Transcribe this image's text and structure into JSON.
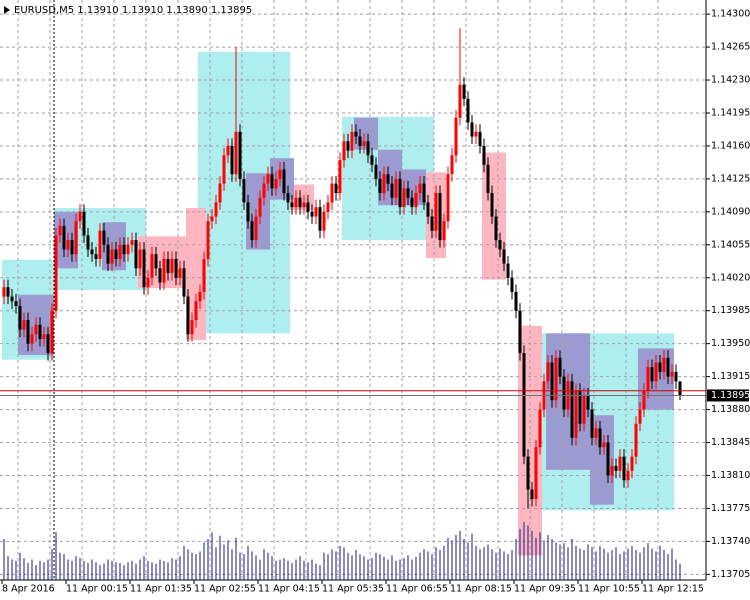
{
  "chart_data": {
    "type": "candlestick",
    "title": "EURUSD,M5  1.13910 1.13910 1.13890 1.13895",
    "categories": [
      "8 Apr 2016",
      null,
      null,
      null,
      null,
      null,
      null,
      null,
      null,
      null,
      null,
      null,
      null,
      null,
      null,
      null,
      "11 Apr 00:15",
      null,
      null,
      null,
      null,
      null,
      null,
      null,
      null,
      null,
      null,
      null,
      null,
      null,
      null,
      null,
      "11 Apr 01:35",
      null,
      null,
      null,
      null,
      null,
      null,
      null,
      null,
      null,
      null,
      null,
      null,
      null,
      null,
      null,
      "11 Apr 02:55",
      null,
      null,
      null,
      null,
      null,
      null,
      null,
      null,
      null,
      null,
      null,
      null,
      null,
      null,
      null,
      "11 Apr 04:15",
      null,
      null,
      null,
      null,
      null,
      null,
      null,
      null,
      null,
      null,
      null,
      null,
      null,
      null,
      null,
      "11 Apr 05:35",
      null,
      null,
      null,
      null,
      null,
      null,
      null,
      null,
      null,
      null,
      null,
      null,
      null,
      null,
      null,
      "11 Apr 06:55",
      null,
      null,
      null,
      null,
      null,
      null,
      null,
      null,
      null,
      null,
      null,
      null,
      null,
      null,
      null,
      "11 Apr 08:15",
      null,
      null,
      null,
      null,
      null,
      null,
      null,
      null,
      null,
      null,
      null,
      null,
      null,
      null,
      null,
      "11 Apr 09:35",
      null,
      null,
      null,
      null,
      null,
      null,
      null,
      null,
      null,
      null,
      null,
      null,
      null,
      null,
      null,
      "11 Apr 10:55",
      null,
      null,
      null,
      null,
      null,
      null,
      null,
      null,
      null,
      null,
      null,
      null,
      null,
      null,
      null,
      "11 Apr 12:15",
      null,
      null,
      null,
      null,
      null,
      null,
      null,
      null,
      null
    ],
    "open": [
      1.14,
      1.1401,
      1.14,
      1.13995,
      1.1399,
      1.13965,
      1.13975,
      1.1395,
      1.1396,
      1.1397,
      1.13955,
      1.1396,
      1.1394,
      1.13985,
      1.14065,
      1.14075,
      1.1405,
      1.1406,
      1.14045,
      1.1408,
      1.1409,
      1.14065,
      1.1405,
      1.14045,
      1.1404,
      1.1407,
      1.14055,
      1.14035,
      1.1405,
      1.1404,
      1.14055,
      1.14045,
      1.14055,
      1.1406,
      1.1403,
      1.1405,
      1.1401,
      1.1402,
      1.14045,
      1.1403,
      1.14015,
      1.1404,
      1.14025,
      1.1404,
      1.1402,
      1.1403,
      1.14,
      1.1396,
      1.13975,
      1.13995,
      1.14005,
      1.1404,
      1.1408,
      1.14085,
      1.141,
      1.1412,
      1.1415,
      1.1416,
      1.1413,
      1.14175,
      1.14125,
      1.141,
      1.1408,
      1.1406,
      1.14085,
      1.14105,
      1.1412,
      1.1413,
      1.14115,
      1.14125,
      1.14135,
      1.1411,
      1.141,
      1.14095,
      1.14105,
      1.14095,
      1.141,
      1.1409,
      1.14085,
      1.14095,
      1.1407,
      1.1409,
      1.141,
      1.1412,
      1.1411,
      1.14145,
      1.14165,
      1.14155,
      1.14175,
      1.1417,
      1.1416,
      1.14165,
      1.1415,
      1.1414,
      1.14125,
      1.1411,
      1.1413,
      1.1412,
      1.14105,
      1.14125,
      1.14095,
      1.14115,
      1.14105,
      1.14095,
      1.1411,
      1.1412,
      1.141,
      1.14085,
      1.1407,
      1.1411,
      1.1406,
      1.1408,
      1.1413,
      1.1415,
      1.1419,
      1.14225,
      1.1421,
      1.14185,
      1.1417,
      1.14175,
      1.1416,
      1.1414,
      1.1411,
      1.14085,
      1.1406,
      1.1405,
      1.14035,
      1.1402,
      1.14005,
      1.13985,
      1.1394,
      1.1383,
      1.13795,
      1.13785,
      1.1384,
      1.1388,
      1.1391,
      1.1393,
      1.1389,
      1.13935,
      1.13915,
      1.1388,
      1.1391,
      1.1385,
      1.139,
      1.13865,
      1.13895,
      1.1388,
      1.1385,
      1.1386,
      1.1384,
      1.13845,
      1.1381,
      1.1382,
      1.13815,
      1.1383,
      1.13805,
      1.13815,
      1.1383,
      1.13865,
      1.1388,
      1.139,
      1.13925,
      1.1391,
      1.1393,
      1.1392,
      1.13935,
      1.13915,
      1.1392,
      1.1391
    ],
    "high": [
      1.14018,
      1.14018,
      1.14008,
      1.14003,
      1.13998,
      1.13983,
      1.13983,
      1.13968,
      1.13978,
      1.13978,
      1.13968,
      1.13968,
      1.13993,
      1.14073,
      1.14083,
      1.14083,
      1.14068,
      1.14068,
      1.14088,
      1.14098,
      1.14098,
      1.14073,
      1.14058,
      1.14053,
      1.14078,
      1.14078,
      1.14063,
      1.14058,
      1.14058,
      1.14063,
      1.14063,
      1.14063,
      1.14068,
      1.14068,
      1.14058,
      1.14058,
      1.14028,
      1.14053,
      1.14053,
      1.14038,
      1.14048,
      1.14048,
      1.14048,
      1.14048,
      1.14038,
      1.14038,
      1.14008,
      1.13983,
      1.14003,
      1.14013,
      1.14048,
      1.14088,
      1.14093,
      1.14108,
      1.14128,
      1.14158,
      1.14168,
      1.14168,
      1.14265,
      1.14183,
      1.14133,
      1.14108,
      1.14088,
      1.14093,
      1.14113,
      1.14128,
      1.14138,
      1.14138,
      1.14133,
      1.14143,
      1.14143,
      1.14118,
      1.14108,
      1.14113,
      1.14113,
      1.14108,
      1.14108,
      1.14098,
      1.14103,
      1.14103,
      1.14098,
      1.14108,
      1.14128,
      1.14128,
      1.14153,
      1.14173,
      1.14173,
      1.14183,
      1.14183,
      1.14178,
      1.14173,
      1.14173,
      1.14158,
      1.14148,
      1.14133,
      1.14138,
      1.14138,
      1.14128,
      1.14133,
      1.14133,
      1.14123,
      1.14123,
      1.14113,
      1.14118,
      1.14128,
      1.14128,
      1.14108,
      1.14093,
      1.14118,
      1.14118,
      1.14088,
      1.14138,
      1.14158,
      1.14198,
      1.14285,
      1.14233,
      1.14218,
      1.14193,
      1.14183,
      1.14183,
      1.14168,
      1.14148,
      1.14118,
      1.14093,
      1.14068,
      1.14058,
      1.14043,
      1.14028,
      1.14013,
      1.13993,
      1.13948,
      1.13838,
      1.13803,
      1.13848,
      1.13888,
      1.13918,
      1.13938,
      1.13938,
      1.13943,
      1.13943,
      1.13923,
      1.13918,
      1.13918,
      1.13908,
      1.13908,
      1.13903,
      1.13903,
      1.13888,
      1.13868,
      1.13868,
      1.13853,
      1.13853,
      1.13828,
      1.13828,
      1.13838,
      1.13838,
      1.13823,
      1.13838,
      1.13873,
      1.13888,
      1.13908,
      1.13933,
      1.13933,
      1.13938,
      1.13938,
      1.13943,
      1.13943,
      1.13928,
      1.13928,
      1.1391
    ],
    "low": [
      1.13992,
      1.13992,
      1.13987,
      1.13982,
      1.13957,
      1.13957,
      1.13942,
      1.13942,
      1.13952,
      1.13947,
      1.13947,
      1.13932,
      1.13932,
      1.13977,
      1.14057,
      1.14042,
      1.14042,
      1.14037,
      1.14037,
      1.14072,
      1.14057,
      1.14042,
      1.14037,
      1.14032,
      1.14032,
      1.14047,
      1.14027,
      1.14027,
      1.14032,
      1.14032,
      1.14037,
      1.14037,
      1.14047,
      1.14022,
      1.14022,
      1.14002,
      1.14002,
      1.14012,
      1.14022,
      1.14007,
      1.14007,
      1.14017,
      1.14017,
      1.14012,
      1.14012,
      1.13992,
      1.13952,
      1.13952,
      1.13967,
      1.13987,
      1.13997,
      1.14032,
      1.14072,
      1.14077,
      1.14092,
      1.14112,
      1.14142,
      1.14122,
      1.14122,
      1.14117,
      1.14092,
      1.14072,
      1.14052,
      1.14052,
      1.14077,
      1.14097,
      1.14112,
      1.14107,
      1.14107,
      1.14117,
      1.14102,
      1.14092,
      1.14087,
      1.14087,
      1.14087,
      1.14087,
      1.14082,
      1.14077,
      1.14077,
      1.14062,
      1.14062,
      1.14082,
      1.14092,
      1.14102,
      1.14102,
      1.14137,
      1.14147,
      1.14147,
      1.14162,
      1.14152,
      1.14152,
      1.14142,
      1.14132,
      1.14117,
      1.14102,
      1.14102,
      1.14112,
      1.14097,
      1.14097,
      1.14087,
      1.14087,
      1.14097,
      1.14087,
      1.14087,
      1.14102,
      1.14092,
      1.14077,
      1.14062,
      1.14062,
      1.14052,
      1.14052,
      1.14072,
      1.14122,
      1.14142,
      1.14182,
      1.14202,
      1.14177,
      1.14162,
      1.14162,
      1.14152,
      1.14132,
      1.14102,
      1.14077,
      1.14052,
      1.14042,
      1.14027,
      1.14012,
      1.13997,
      1.13977,
      1.13932,
      1.13822,
      1.13775,
      1.13777,
      1.13777,
      1.13832,
      1.13872,
      1.13902,
      1.13882,
      1.13882,
      1.13907,
      1.13872,
      1.13872,
      1.13842,
      1.13842,
      1.13857,
      1.13857,
      1.13872,
      1.13842,
      1.13842,
      1.13832,
      1.13832,
      1.13802,
      1.13802,
      1.13807,
      1.13807,
      1.13797,
      1.13797,
      1.13807,
      1.13822,
      1.13857,
      1.13872,
      1.13892,
      1.13902,
      1.13902,
      1.13912,
      1.13912,
      1.13907,
      1.13907,
      1.13902,
      1.1389
    ],
    "close": [
      1.1401,
      1.14,
      1.13995,
      1.1399,
      1.13965,
      1.13975,
      1.1395,
      1.1396,
      1.1397,
      1.13955,
      1.1396,
      1.1394,
      1.13985,
      1.14065,
      1.14075,
      1.1405,
      1.1406,
      1.14045,
      1.1408,
      1.1409,
      1.14065,
      1.1405,
      1.14045,
      1.1404,
      1.1407,
      1.14055,
      1.14035,
      1.1405,
      1.1404,
      1.14055,
      1.14045,
      1.14055,
      1.1406,
      1.1403,
      1.1405,
      1.1401,
      1.1402,
      1.14045,
      1.1403,
      1.14015,
      1.1404,
      1.14025,
      1.1404,
      1.1402,
      1.1403,
      1.14,
      1.1396,
      1.13975,
      1.13995,
      1.14005,
      1.1404,
      1.1408,
      1.14085,
      1.141,
      1.1412,
      1.1415,
      1.1416,
      1.1413,
      1.14175,
      1.14125,
      1.141,
      1.1408,
      1.1406,
      1.14085,
      1.14105,
      1.1412,
      1.1413,
      1.14115,
      1.14125,
      1.14135,
      1.1411,
      1.141,
      1.14095,
      1.14105,
      1.14095,
      1.141,
      1.1409,
      1.14085,
      1.14095,
      1.1407,
      1.1409,
      1.141,
      1.1412,
      1.1411,
      1.14145,
      1.14165,
      1.14155,
      1.14175,
      1.1417,
      1.1416,
      1.14165,
      1.1415,
      1.1414,
      1.14125,
      1.1411,
      1.1413,
      1.1412,
      1.14105,
      1.14125,
      1.14095,
      1.14115,
      1.14105,
      1.14095,
      1.1411,
      1.1412,
      1.141,
      1.14085,
      1.1407,
      1.1411,
      1.1406,
      1.1408,
      1.1413,
      1.1415,
      1.1419,
      1.14225,
      1.1421,
      1.14185,
      1.1417,
      1.14175,
      1.1416,
      1.1414,
      1.1411,
      1.14085,
      1.1406,
      1.1405,
      1.14035,
      1.1402,
      1.14005,
      1.13985,
      1.1394,
      1.1383,
      1.13795,
      1.13785,
      1.1384,
      1.1388,
      1.1391,
      1.1393,
      1.1389,
      1.13935,
      1.13915,
      1.1388,
      1.1391,
      1.1385,
      1.139,
      1.13865,
      1.13895,
      1.1388,
      1.1385,
      1.1386,
      1.1384,
      1.13845,
      1.1381,
      1.1382,
      1.13815,
      1.1383,
      1.13805,
      1.13815,
      1.1383,
      1.13865,
      1.1388,
      1.139,
      1.13925,
      1.1391,
      1.1393,
      1.1392,
      1.13935,
      1.13915,
      1.1392,
      1.1391,
      1.13895
    ],
    "volume": [
      60,
      35,
      30,
      28,
      40,
      32,
      25,
      30,
      22,
      28,
      26,
      30,
      45,
      70,
      40,
      38,
      30,
      28,
      35,
      32,
      28,
      25,
      30,
      26,
      22,
      24,
      30,
      28,
      26,
      25,
      22,
      26,
      28,
      24,
      30,
      35,
      28,
      26,
      24,
      30,
      28,
      26,
      32,
      30,
      35,
      50,
      45,
      40,
      38,
      42,
      55,
      60,
      70,
      48,
      65,
      52,
      58,
      45,
      62,
      40,
      38,
      50,
      42,
      36,
      30,
      45,
      40,
      35,
      28,
      30,
      32,
      28,
      25,
      30,
      35,
      28,
      26,
      30,
      24,
      22,
      40,
      38,
      45,
      42,
      50,
      48,
      40,
      36,
      44,
      38,
      35,
      30,
      32,
      40,
      38,
      34,
      30,
      36,
      28,
      30,
      32,
      36,
      30,
      34,
      40,
      45,
      42,
      38,
      48,
      44,
      50,
      62,
      58,
      66,
      72,
      60,
      55,
      68,
      50,
      45,
      48,
      52,
      45,
      40,
      46,
      42,
      38,
      44,
      60,
      75,
      85,
      80,
      72,
      62,
      70,
      58,
      66,
      60,
      55,
      52,
      54,
      48,
      60,
      50,
      46,
      44,
      52,
      48,
      42,
      50,
      46,
      40,
      44,
      48,
      38,
      42,
      46,
      50,
      44,
      40,
      48,
      54,
      46,
      42,
      50,
      44,
      38,
      46,
      30,
      24
    ],
    "up_color": "#ff0000",
    "down_color": "#000000",
    "volume_color": "#1a1a80",
    "ylim": [
      1.13699,
      1.14315
    ],
    "yticks": [
      {
        "value": 1.143,
        "label": "1.14300"
      },
      1.14265,
      {
        "value": 1.1423,
        "label": "1.14230"
      },
      1.14195,
      {
        "value": 1.1416,
        "label": "1.14160"
      },
      1.14125,
      {
        "value": 1.1409,
        "label": "1.14090"
      },
      1.14055,
      {
        "value": 1.1402,
        "label": "1.14020"
      },
      1.13985,
      {
        "value": 1.1395,
        "label": "1.13950"
      },
      1.13915,
      {
        "value": 1.1388,
        "label": "1.13880"
      },
      1.13845,
      {
        "value": 1.1381,
        "label": "1.13810"
      },
      1.13775,
      {
        "value": 1.1374,
        "label": "1.13740"
      },
      1.13705
    ],
    "grid": true,
    "bid": 1.13895,
    "ask": 1.139,
    "zones": [
      {
        "from": 0,
        "to": 12,
        "high": 1.14039,
        "low": 1.13933,
        "color": "#afeeee"
      },
      {
        "from": 13,
        "to": 35,
        "high": 1.14094,
        "low": 1.14007,
        "color": "#afeeee"
      },
      {
        "from": 49,
        "to": 71,
        "high": 1.1426,
        "low": 1.13961,
        "color": "#afeeee"
      },
      {
        "from": 85,
        "to": 107,
        "high": 1.14191,
        "low": 1.1406,
        "color": "#afeeee"
      },
      {
        "from": 133,
        "to": 167,
        "high": 1.13961,
        "low": 1.13773,
        "color": "#afeeee"
      },
      {
        "from": 34,
        "to": 45,
        "high": 1.14064,
        "low": 1.14009,
        "color": "#ffb6c1"
      },
      {
        "from": 46,
        "to": 50,
        "high": 1.14094,
        "low": 1.13954,
        "color": "#ffb6c1"
      },
      {
        "from": 72,
        "to": 77,
        "high": 1.14119,
        "low": 1.14092,
        "color": "#ffb6c1"
      },
      {
        "from": 106,
        "to": 110,
        "high": 1.14132,
        "low": 1.14041,
        "color": "#ffb6c1"
      },
      {
        "from": 120,
        "to": 125,
        "high": 1.14153,
        "low": 1.14018,
        "color": "#ffb6c1"
      },
      {
        "from": 129,
        "to": 134,
        "high": 1.13969,
        "low": 1.13725,
        "color": "#ffb6c1"
      },
      {
        "from": 4,
        "to": 12,
        "high": 1.14002,
        "low": 1.13938,
        "color": "#9b9bd2"
      },
      {
        "from": 13,
        "to": 18,
        "high": 1.1409,
        "low": 1.1403,
        "color": "#9b9bd2"
      },
      {
        "from": 25,
        "to": 30,
        "high": 1.14079,
        "low": 1.14028,
        "color": "#9b9bd2"
      },
      {
        "from": 61,
        "to": 66,
        "high": 1.14131,
        "low": 1.1405,
        "color": "#9b9bd2"
      },
      {
        "from": 67,
        "to": 72,
        "high": 1.14147,
        "low": 1.14103,
        "color": "#9b9bd2"
      },
      {
        "from": 88,
        "to": 93,
        "high": 1.1419,
        "low": 1.14156,
        "color": "#9b9bd2"
      },
      {
        "from": 94,
        "to": 99,
        "high": 1.14156,
        "low": 1.14097,
        "color": "#9b9bd2"
      },
      {
        "from": 100,
        "to": 105,
        "high": 1.14135,
        "low": 1.14097,
        "color": "#9b9bd2"
      },
      {
        "from": 136,
        "to": 146,
        "high": 1.13961,
        "low": 1.13816,
        "color": "#9b9bd2"
      },
      {
        "from": 147,
        "to": 152,
        "high": 1.13874,
        "low": 1.13779,
        "color": "#9b9bd2"
      },
      {
        "from": 159,
        "to": 167,
        "high": 1.13945,
        "low": 1.1388,
        "color": "#9b9bd2"
      }
    ]
  }
}
